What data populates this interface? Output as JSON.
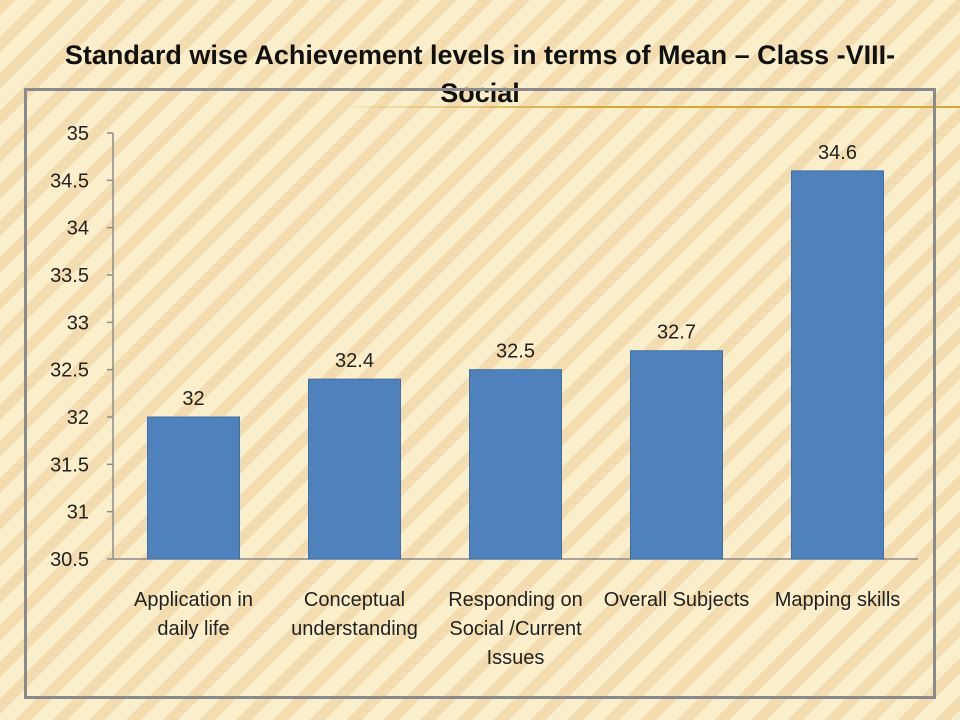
{
  "title": "Standard wise Achievement levels in terms of Mean – Class -VIII-Social",
  "chart_data": {
    "type": "bar",
    "title": "Standard wise Achievement levels in terms of Mean – Class -VIII-Social",
    "categories": [
      [
        "Application in",
        "daily life"
      ],
      [
        "Conceptual",
        "understanding"
      ],
      [
        "Responding on",
        "Social /Current",
        "Issues"
      ],
      [
        "Overall Subjects"
      ],
      [
        "Mapping skills"
      ]
    ],
    "values": [
      32,
      32.4,
      32.5,
      32.7,
      34.6
    ],
    "data_labels": [
      "32",
      "32.4",
      "32.5",
      "32.7",
      "34.6"
    ],
    "yticks": [
      "30.5",
      "31",
      "31.5",
      "32",
      "32.5",
      "33",
      "33.5",
      "34",
      "34.5",
      "35"
    ],
    "ylim": [
      30.5,
      35
    ],
    "xlabel": "",
    "ylabel": "",
    "grid": false,
    "legend": "none",
    "bar_color": "#4f81bd",
    "axis_color": "#8c8c8c"
  }
}
